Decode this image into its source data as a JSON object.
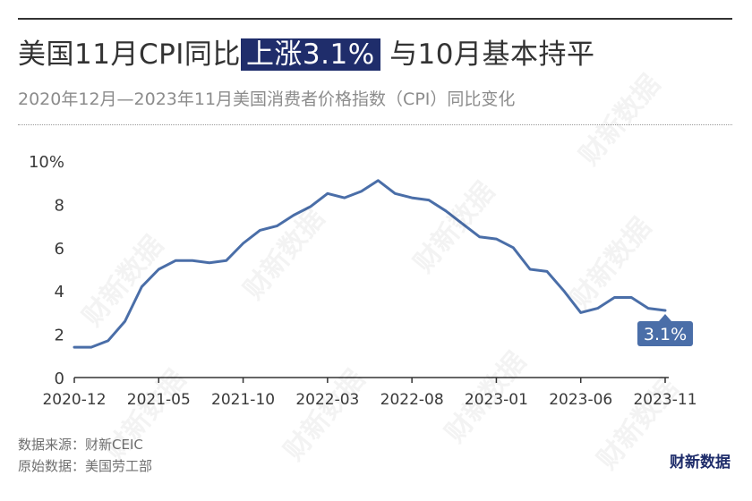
{
  "header": {
    "title_pre": "美国11月CPI同比",
    "title_highlight": "上涨3.1%",
    "title_post": "与10月基本持平",
    "subtitle": "2020年12月—2023年11月美国消费者价格指数（CPI）同比变化"
  },
  "chart_data": {
    "type": "line",
    "x": [
      "2020-12",
      "2021-01",
      "2021-02",
      "2021-03",
      "2021-04",
      "2021-05",
      "2021-06",
      "2021-07",
      "2021-08",
      "2021-09",
      "2021-10",
      "2021-11",
      "2021-12",
      "2022-01",
      "2022-02",
      "2022-03",
      "2022-04",
      "2022-05",
      "2022-06",
      "2022-07",
      "2022-08",
      "2022-09",
      "2022-10",
      "2022-11",
      "2022-12",
      "2023-01",
      "2023-02",
      "2023-03",
      "2023-04",
      "2023-05",
      "2023-06",
      "2023-07",
      "2023-08",
      "2023-09",
      "2023-10",
      "2023-11"
    ],
    "series": [
      {
        "values": [
          1.4,
          1.4,
          1.7,
          2.6,
          4.2,
          5.0,
          5.4,
          5.4,
          5.3,
          5.4,
          6.2,
          6.8,
          7.0,
          7.5,
          7.9,
          8.5,
          8.3,
          8.6,
          9.1,
          8.5,
          8.3,
          8.2,
          7.7,
          7.1,
          6.5,
          6.4,
          6.0,
          5.0,
          4.9,
          4.0,
          3.0,
          3.2,
          3.7,
          3.7,
          3.2,
          3.1
        ]
      }
    ],
    "xticks": [
      "2020-12",
      "2021-05",
      "2021-10",
      "2022-03",
      "2022-08",
      "2023-01",
      "2023-06",
      "2023-11"
    ],
    "yticks": [
      "0",
      "2",
      "4",
      "6",
      "8",
      "10%"
    ],
    "ylim": [
      0,
      10
    ],
    "line_color": "#4a6ea8",
    "last_label": "3.1%",
    "grid": false
  },
  "footer": {
    "source": "数据来源：财新CEIC",
    "original": "原始数据：美国劳工部",
    "brand": "财新数据"
  },
  "watermark": "财新数据"
}
